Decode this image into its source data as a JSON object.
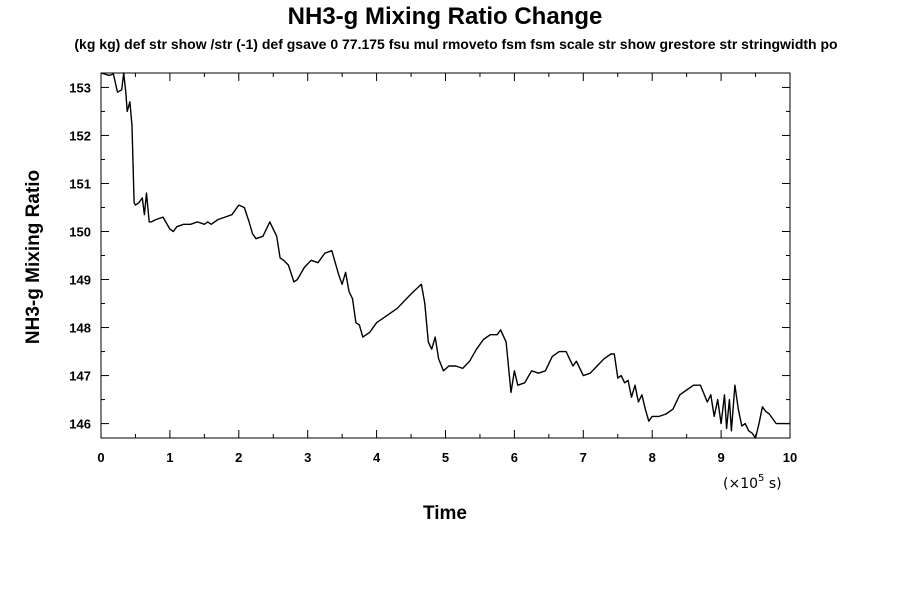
{
  "chart_data": {
    "type": "line",
    "title": "NH3-g Mixing Ratio Change",
    "subtitle": "(kg kg) def str show /str (-1) def gsave 0 77.175 fsu mul rmoveto fsm fsm scale str show grestore str stringwidth po",
    "xlabel": "Time",
    "ylabel": "NH3-g Mixing Ratio",
    "x_unit": {
      "prefix": "(×10",
      "exponent": "5",
      "suffix": " s)"
    },
    "xlim": [
      0,
      10
    ],
    "ylim": [
      145.7,
      153.3
    ],
    "xticks": [
      0,
      1,
      2,
      3,
      4,
      5,
      6,
      7,
      8,
      9,
      10
    ],
    "yticks": [
      146,
      147,
      148,
      149,
      150,
      151,
      152,
      153
    ],
    "grid": false,
    "series": [
      {
        "color": "#000000",
        "x": [
          0,
          0.12,
          0.18,
          0.24,
          0.3,
          0.33,
          0.36,
          0.38,
          0.42,
          0.45,
          0.48,
          0.5,
          0.55,
          0.6,
          0.63,
          0.66,
          0.7,
          0.73,
          0.8,
          0.9,
          1.0,
          1.05,
          1.1,
          1.2,
          1.3,
          1.4,
          1.5,
          1.55,
          1.6,
          1.7,
          1.8,
          1.9,
          2.0,
          2.08,
          2.15,
          2.2,
          2.25,
          2.35,
          2.45,
          2.55,
          2.6,
          2.65,
          2.72,
          2.8,
          2.85,
          2.95,
          3.05,
          3.15,
          3.25,
          3.35,
          3.45,
          3.5,
          3.55,
          3.6,
          3.65,
          3.7,
          3.75,
          3.8,
          3.9,
          4.0,
          4.1,
          4.3,
          4.5,
          4.65,
          4.7,
          4.75,
          4.8,
          4.85,
          4.9,
          4.97,
          5.05,
          5.15,
          5.25,
          5.35,
          5.45,
          5.55,
          5.65,
          5.75,
          5.8,
          5.88,
          5.95,
          6.0,
          6.05,
          6.15,
          6.25,
          6.35,
          6.45,
          6.55,
          6.65,
          6.75,
          6.8,
          6.85,
          6.9,
          7.0,
          7.1,
          7.2,
          7.3,
          7.4,
          7.45,
          7.5,
          7.55,
          7.6,
          7.65,
          7.7,
          7.75,
          7.8,
          7.85,
          7.9,
          7.95,
          8.0,
          8.1,
          8.2,
          8.3,
          8.4,
          8.5,
          8.6,
          8.7,
          8.8,
          8.85,
          8.9,
          8.95,
          9.0,
          9.05,
          9.08,
          9.12,
          9.15,
          9.2,
          9.25,
          9.3,
          9.35,
          9.4,
          9.45,
          9.5,
          9.55,
          9.6,
          9.65,
          9.7,
          9.8,
          9.9,
          10.0
        ],
        "y": [
          153.3,
          153.25,
          153.28,
          152.9,
          152.95,
          153.3,
          152.9,
          152.5,
          152.7,
          152.2,
          150.6,
          150.55,
          150.6,
          150.7,
          150.35,
          150.8,
          150.2,
          150.2,
          150.25,
          150.3,
          150.05,
          150.0,
          150.1,
          150.15,
          150.15,
          150.2,
          150.15,
          150.2,
          150.15,
          150.25,
          150.3,
          150.35,
          150.55,
          150.5,
          150.2,
          149.95,
          149.85,
          149.9,
          150.2,
          149.9,
          149.45,
          149.4,
          149.3,
          148.95,
          149.0,
          149.25,
          149.4,
          149.35,
          149.55,
          149.6,
          149.1,
          148.9,
          149.15,
          148.75,
          148.6,
          148.1,
          148.05,
          147.8,
          147.9,
          148.1,
          148.2,
          148.4,
          148.7,
          148.9,
          148.5,
          147.7,
          147.55,
          147.8,
          147.35,
          147.1,
          147.2,
          147.2,
          147.15,
          147.3,
          147.55,
          147.75,
          147.85,
          147.85,
          147.95,
          147.7,
          146.65,
          147.1,
          146.8,
          146.85,
          147.1,
          147.05,
          147.1,
          147.4,
          147.5,
          147.5,
          147.35,
          147.2,
          147.3,
          147.0,
          147.05,
          147.2,
          147.35,
          147.45,
          147.45,
          146.95,
          147.0,
          146.85,
          146.9,
          146.55,
          146.8,
          146.45,
          146.6,
          146.3,
          146.05,
          146.15,
          146.15,
          146.2,
          146.3,
          146.6,
          146.7,
          146.8,
          146.8,
          146.45,
          146.6,
          146.15,
          146.5,
          146.0,
          146.6,
          145.9,
          146.5,
          145.85,
          146.8,
          146.3,
          145.95,
          146.0,
          145.85,
          145.8,
          145.7,
          146.0,
          146.35,
          146.25,
          146.2,
          146.0,
          146.0,
          146.0
        ]
      }
    ]
  }
}
